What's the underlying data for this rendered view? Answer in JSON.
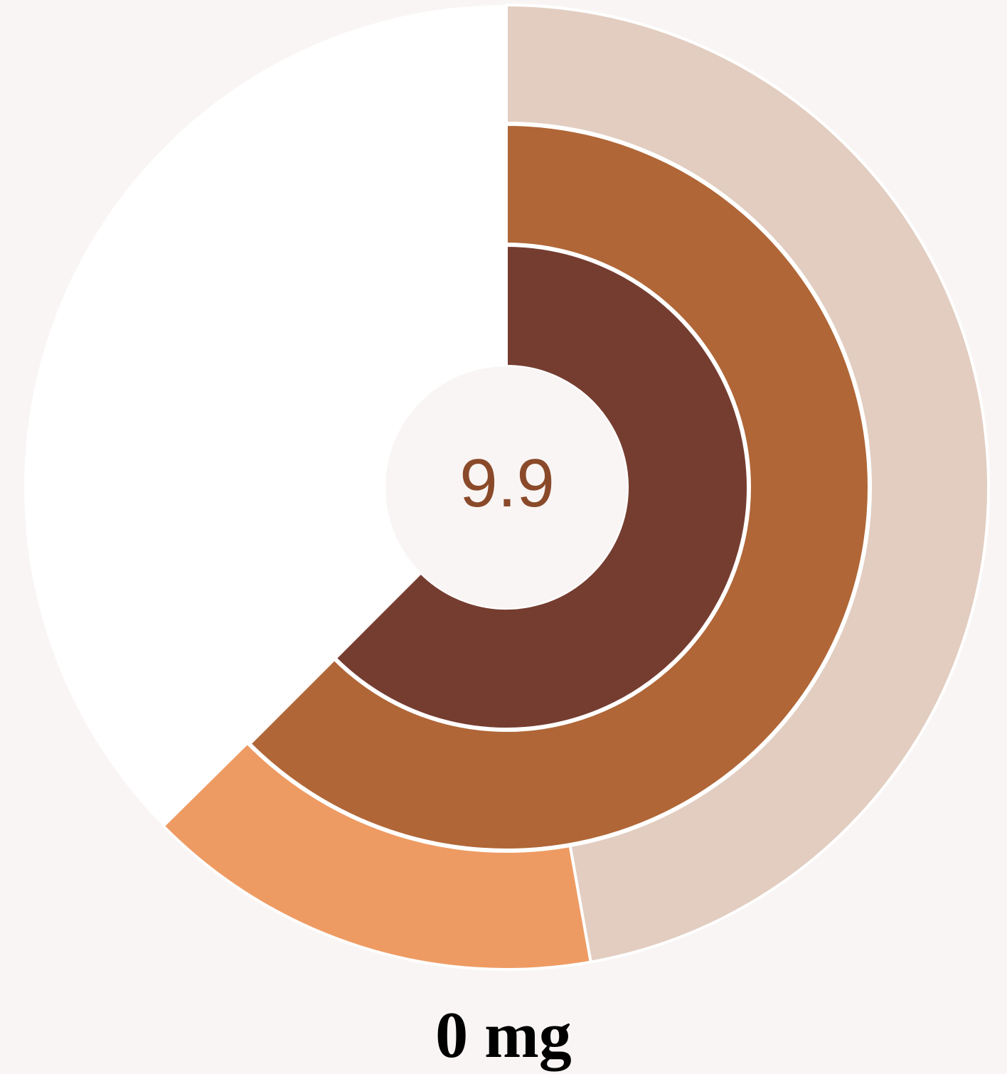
{
  "chart_data": {
    "type": "radial-bar",
    "title": "",
    "center_label": "9.9",
    "caption": "0 mg",
    "unit_fraction_of_full_circle": true,
    "rings": [
      {
        "ring": "outer",
        "segments": [
          {
            "value": 0.472,
            "color": "#e2cdc0"
          },
          {
            "value": 0.154,
            "color": "#ee9b63"
          }
        ]
      },
      {
        "ring": "middle",
        "value": 0.625,
        "color": "#b06637"
      },
      {
        "ring": "inner",
        "value": 0.625,
        "color": "#753d30"
      }
    ],
    "background_color": "#ffffff",
    "page_color": "#f9f5f4",
    "label_color": "#8a4a2a"
  }
}
